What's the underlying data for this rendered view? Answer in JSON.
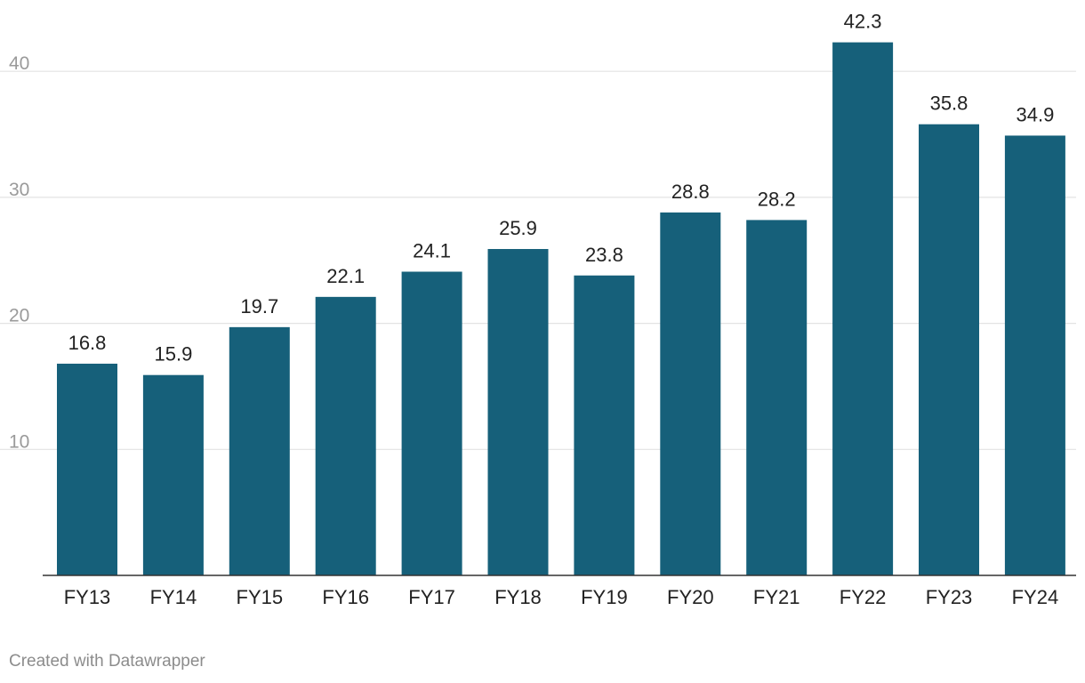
{
  "chart_data": {
    "type": "bar",
    "categories": [
      "FY13",
      "FY14",
      "FY15",
      "FY16",
      "FY17",
      "FY18",
      "FY19",
      "FY20",
      "FY21",
      "FY22",
      "FY23",
      "FY24"
    ],
    "values": [
      16.8,
      15.9,
      19.7,
      22.1,
      24.1,
      25.9,
      23.8,
      28.8,
      28.2,
      42.3,
      35.8,
      34.9
    ],
    "value_labels": [
      "16.8",
      "15.9",
      "19.7",
      "22.1",
      "24.1",
      "25.9",
      "23.8",
      "28.8",
      "28.2",
      "42.3",
      "35.8",
      "34.9"
    ],
    "yticks": [
      10,
      20,
      30,
      40
    ],
    "ytick_labels": [
      "10",
      "20",
      "30",
      "40"
    ],
    "ylim": [
      0,
      45
    ],
    "grid": true,
    "legend": "none",
    "bar_color": "#16607a",
    "gridline_color": "#e3e3e3",
    "baseline_color": "#333333",
    "tick_label_color": "#9a9a9a",
    "category_label_color": "#222222",
    "value_label_color": "#222222"
  },
  "footer": {
    "credit": "Created with Datawrapper"
  }
}
